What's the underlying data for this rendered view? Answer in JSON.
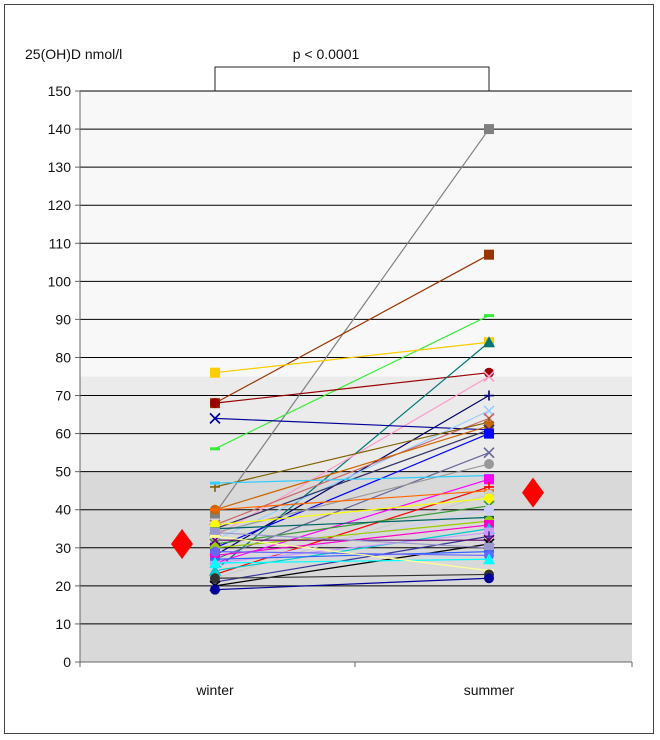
{
  "chart_data": {
    "type": "line",
    "ylabel": "25(OH)D nmol/l",
    "annotation": "p < 0.0001",
    "categories": [
      "winter",
      "summer"
    ],
    "ylim": [
      0,
      150
    ],
    "yticks": [
      0,
      10,
      20,
      30,
      40,
      50,
      60,
      70,
      80,
      90,
      100,
      110,
      120,
      130,
      140,
      150
    ],
    "grid": true,
    "background_bands": [
      {
        "from": 0,
        "to": 50,
        "color": "#d9d9d9"
      },
      {
        "from": 50,
        "to": 75,
        "color": "#ebebeb"
      },
      {
        "from": 75,
        "to": 150,
        "color": "#f8f8f8"
      }
    ],
    "means": {
      "values": [
        31,
        44.5
      ],
      "color": "#ff0000",
      "marker": "diamond"
    },
    "series": [
      {
        "values": [
          39,
          140
        ],
        "color": "#808080",
        "marker": "square"
      },
      {
        "values": [
          68,
          107
        ],
        "color": "#993300",
        "marker": "square"
      },
      {
        "values": [
          56,
          91
        ],
        "color": "#33ee33",
        "marker": "dash"
      },
      {
        "values": [
          76,
          84
        ],
        "color": "#ffcc00",
        "marker": "square"
      },
      {
        "values": [
          68,
          76
        ],
        "color": "#990000",
        "marker": "circle"
      },
      {
        "values": [
          24,
          84
        ],
        "color": "#007777",
        "marker": "triangle"
      },
      {
        "values": [
          33,
          75
        ],
        "color": "#ff99cc",
        "marker": "x"
      },
      {
        "values": [
          28,
          70
        ],
        "color": "#000066",
        "marker": "plus"
      },
      {
        "values": [
          64,
          61
        ],
        "color": "#000099",
        "marker": "x"
      },
      {
        "values": [
          32,
          66
        ],
        "color": "#99ccff",
        "marker": "x"
      },
      {
        "values": [
          36,
          64
        ],
        "color": "#cc6666",
        "marker": "x"
      },
      {
        "values": [
          46,
          63
        ],
        "color": "#806000",
        "marker": "plus"
      },
      {
        "values": [
          40,
          62
        ],
        "color": "#cc6600",
        "marker": "circle"
      },
      {
        "values": [
          35,
          61
        ],
        "color": "#333366",
        "marker": "x"
      },
      {
        "values": [
          30,
          60
        ],
        "color": "#0000ff",
        "marker": "square"
      },
      {
        "values": [
          27,
          55
        ],
        "color": "#666699",
        "marker": "x"
      },
      {
        "values": [
          34,
          52
        ],
        "color": "#999999",
        "marker": "circle"
      },
      {
        "values": [
          47,
          49
        ],
        "color": "#33ccff",
        "marker": "dash"
      },
      {
        "values": [
          26,
          48
        ],
        "color": "#ff00ff",
        "marker": "square"
      },
      {
        "values": [
          23,
          46
        ],
        "color": "#ff0000",
        "marker": "plus"
      },
      {
        "values": [
          40,
          45
        ],
        "color": "#ff6600",
        "marker": "dash"
      },
      {
        "values": [
          22,
          44
        ],
        "color": "#cccccc",
        "marker": "circle"
      },
      {
        "values": [
          36,
          43
        ],
        "color": "#ffff00",
        "marker": "circle"
      },
      {
        "values": [
          31,
          41
        ],
        "color": "#339933",
        "marker": "x"
      },
      {
        "values": [
          25,
          40
        ],
        "color": "#ccccff",
        "marker": "circle"
      },
      {
        "values": [
          35,
          38
        ],
        "color": "#006666",
        "marker": "dash"
      },
      {
        "values": [
          30,
          37
        ],
        "color": "#99cc00",
        "marker": "circle"
      },
      {
        "values": [
          28,
          36
        ],
        "color": "#ff00cc",
        "marker": "square"
      },
      {
        "values": [
          24,
          35
        ],
        "color": "#00cccc",
        "marker": "triangle"
      },
      {
        "values": [
          26,
          34
        ],
        "color": "#cc99ff",
        "marker": "square"
      },
      {
        "values": [
          21,
          33
        ],
        "color": "#333399",
        "marker": "plus"
      },
      {
        "values": [
          32,
          32
        ],
        "color": "#660066",
        "marker": "x"
      },
      {
        "values": [
          20,
          31
        ],
        "color": "#000000",
        "marker": "x"
      },
      {
        "values": [
          34,
          30
        ],
        "color": "#9999cc",
        "marker": "square"
      },
      {
        "values": [
          27,
          29
        ],
        "color": "#3366ff",
        "marker": "dash"
      },
      {
        "values": [
          29,
          28
        ],
        "color": "#6666ff",
        "marker": "circle"
      },
      {
        "values": [
          26,
          27
        ],
        "color": "#00ffff",
        "marker": "triangle"
      },
      {
        "values": [
          33,
          24
        ],
        "color": "#ffff99",
        "marker": "dash"
      },
      {
        "values": [
          22,
          23
        ],
        "color": "#333333",
        "marker": "circle"
      },
      {
        "values": [
          19,
          22
        ],
        "color": "#000099",
        "marker": "circle"
      }
    ]
  }
}
